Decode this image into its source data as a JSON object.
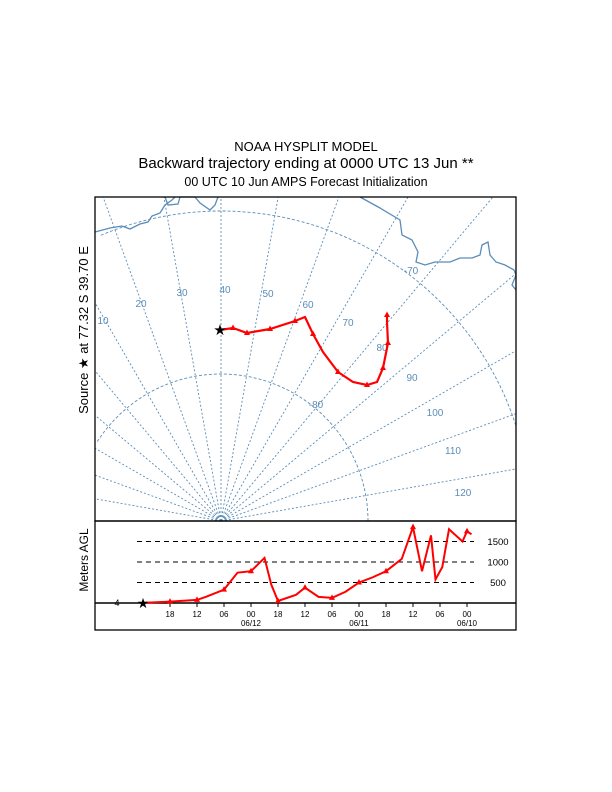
{
  "header": {
    "title": "NOAA HYSPLIT MODEL",
    "subtitle": "Backward trajectory ending at 0000 UTC 13 Jun **",
    "info": "00 UTC 10 Jun    AMPS  Forecast Initialization"
  },
  "map": {
    "source_label": "Source ★ at  77.32 S   39.70 E",
    "meridian_labels": [
      "10",
      "20",
      "30",
      "40",
      "50",
      "60",
      "70",
      "80",
      "90",
      "100",
      "110",
      "120"
    ],
    "latitude_labels": [
      "-70",
      "-80"
    ],
    "colors": {
      "grid": "#5b8db8",
      "trajectory": "#ff0000",
      "source": "#000000"
    }
  },
  "chart_data": {
    "type": "line",
    "title": "",
    "ylabel": "Meters AGL",
    "ylim": [
      0,
      2000
    ],
    "yticks": [
      "500",
      "1000",
      "1500"
    ],
    "ytick_values": [
      500,
      1000,
      1500
    ],
    "start_height_label": "4",
    "xlabel": "",
    "xtick_labels": [
      "18",
      "12",
      "06",
      "00",
      "18",
      "12",
      "06",
      "00",
      "18",
      "12",
      "06",
      "00"
    ],
    "xtick_hours_back": [
      6,
      12,
      18,
      24,
      30,
      36,
      42,
      48,
      54,
      60,
      66,
      72
    ],
    "date_labels": [
      "06/12",
      "06/11",
      "06/10"
    ],
    "date_hours_back": [
      24,
      48,
      72
    ],
    "series": [
      {
        "name": "trajectory height",
        "hours_back": [
          0,
          6,
          12,
          14,
          18,
          21,
          24,
          27,
          28.5,
          30,
          34,
          36,
          39,
          42,
          45,
          48,
          51,
          54,
          57.5,
          60,
          62,
          64,
          65,
          66.5,
          68,
          71,
          72,
          73
        ],
        "values": [
          4,
          33,
          75,
          150,
          325,
          740,
          775,
          1100,
          450,
          50,
          200,
          375,
          150,
          125,
          275,
          500,
          625,
          775,
          1075,
          1850,
          775,
          1650,
          575,
          875,
          1800,
          1500,
          1750,
          1675
        ]
      }
    ]
  }
}
